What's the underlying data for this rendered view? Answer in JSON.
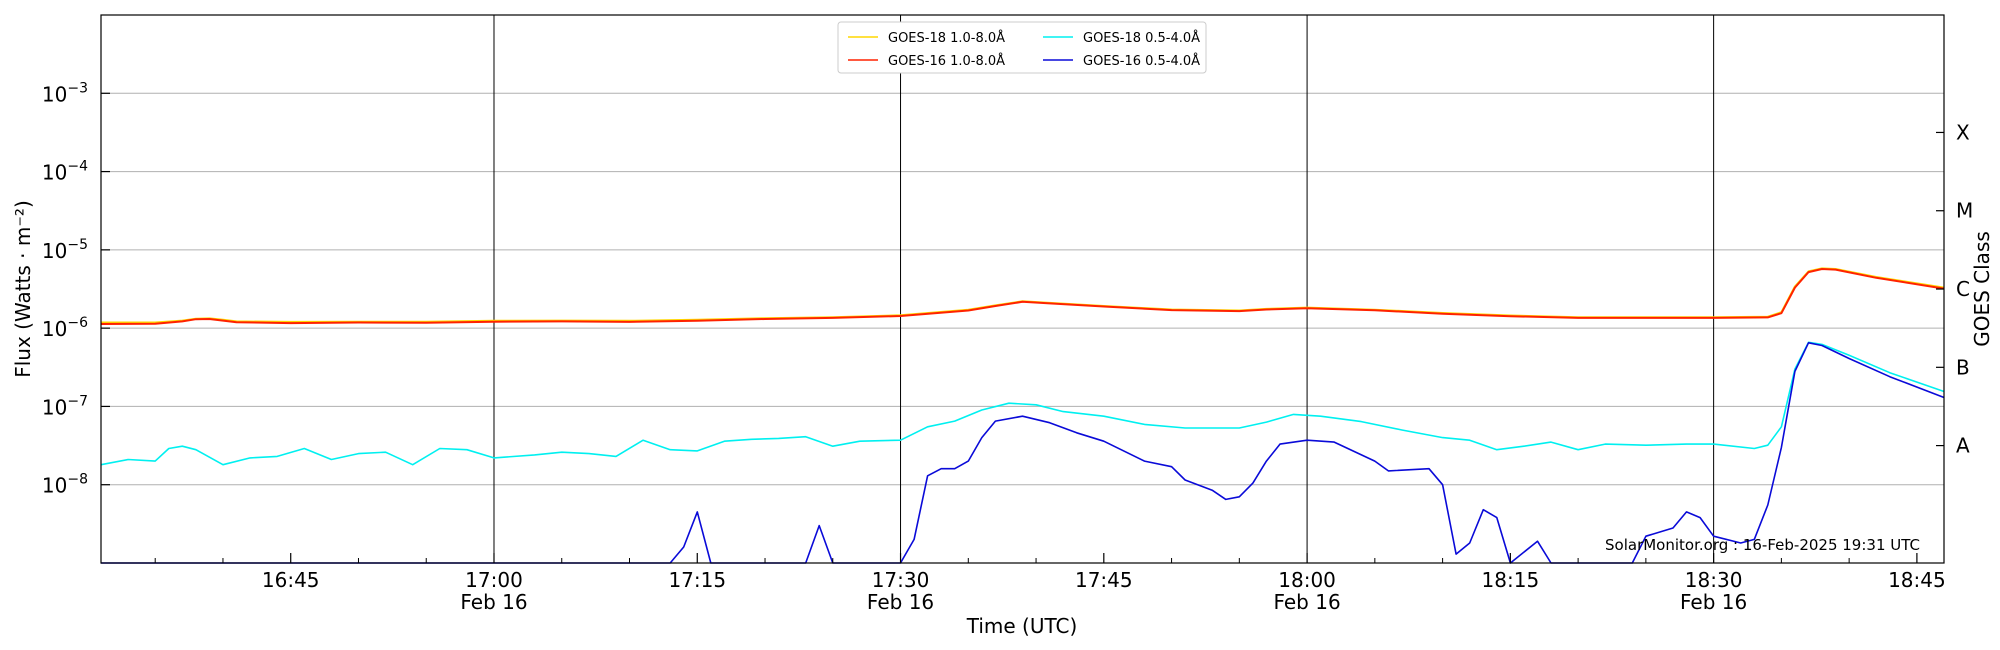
{
  "chart_data": {
    "type": "line",
    "xlabel": "Time (UTC)",
    "ylabel": "Flux (Watts · m⁻²)",
    "right_label": "GOES Class",
    "credit": "SolarMonitor.org : 16-Feb-2025 19:31 UTC",
    "x_range": [
      "16:31",
      "18:47"
    ],
    "y_range": [
      1e-09,
      0.01
    ],
    "y_scale": "log",
    "grid": "horizontal at decades",
    "y_ticks": [
      {
        "value": 1e-08,
        "base": "10",
        "exp": "−8"
      },
      {
        "value": 1e-07,
        "base": "10",
        "exp": "−7"
      },
      {
        "value": 1e-06,
        "base": "10",
        "exp": "−6"
      },
      {
        "value": 1e-05,
        "base": "10",
        "exp": "−5"
      },
      {
        "value": 0.0001,
        "base": "10",
        "exp": "−4"
      },
      {
        "value": 0.001,
        "base": "10",
        "exp": "−3"
      }
    ],
    "x_ticks": [
      {
        "time": "16:45",
        "label": "16:45",
        "sub": ""
      },
      {
        "time": "17:00",
        "label": "17:00",
        "sub": "Feb 16"
      },
      {
        "time": "17:15",
        "label": "17:15",
        "sub": ""
      },
      {
        "time": "17:30",
        "label": "17:30",
        "sub": "Feb 16"
      },
      {
        "time": "17:45",
        "label": "17:45",
        "sub": ""
      },
      {
        "time": "18:00",
        "label": "18:00",
        "sub": "Feb 16"
      },
      {
        "time": "18:15",
        "label": "18:15",
        "sub": ""
      },
      {
        "time": "18:30",
        "label": "18:30",
        "sub": "Feb 16"
      },
      {
        "time": "18:45",
        "label": "18:45",
        "sub": ""
      }
    ],
    "vlines": [
      "17:00",
      "17:30",
      "18:00",
      "18:30"
    ],
    "classes": [
      {
        "label": "A",
        "value": 3.16e-08
      },
      {
        "label": "B",
        "value": 3.16e-07
      },
      {
        "label": "C",
        "value": 3.16e-06
      },
      {
        "label": "M",
        "value": 3.16e-05
      },
      {
        "label": "X",
        "value": 0.000316
      }
    ],
    "legend_position": "top-center",
    "series": [
      {
        "name": "GOES-18 1.0-8.0Å",
        "color": "#ffd700",
        "points": [
          [
            "16:31",
            1.18e-06
          ],
          [
            "16:35",
            1.18e-06
          ],
          [
            "16:37",
            1.25e-06
          ],
          [
            "16:38",
            1.32e-06
          ],
          [
            "16:39",
            1.33e-06
          ],
          [
            "16:40",
            1.28e-06
          ],
          [
            "16:41",
            1.22e-06
          ],
          [
            "16:45",
            1.2e-06
          ],
          [
            "16:50",
            1.21e-06
          ],
          [
            "16:55",
            1.21e-06
          ],
          [
            "17:00",
            1.24e-06
          ],
          [
            "17:05",
            1.25e-06
          ],
          [
            "17:10",
            1.24e-06
          ],
          [
            "17:15",
            1.28e-06
          ],
          [
            "17:20",
            1.34e-06
          ],
          [
            "17:25",
            1.38e-06
          ],
          [
            "17:30",
            1.46e-06
          ],
          [
            "17:35",
            1.72e-06
          ],
          [
            "17:37",
            1.95e-06
          ],
          [
            "17:39",
            2.2e-06
          ],
          [
            "17:41",
            2.1e-06
          ],
          [
            "17:45",
            1.92e-06
          ],
          [
            "17:50",
            1.73e-06
          ],
          [
            "17:55",
            1.68e-06
          ],
          [
            "17:57",
            1.76e-06
          ],
          [
            "18:00",
            1.83e-06
          ],
          [
            "18:05",
            1.72e-06
          ],
          [
            "18:10",
            1.56e-06
          ],
          [
            "18:15",
            1.45e-06
          ],
          [
            "18:20",
            1.38e-06
          ],
          [
            "18:25",
            1.38e-06
          ],
          [
            "18:30",
            1.38e-06
          ],
          [
            "18:34",
            1.4e-06
          ],
          [
            "18:35",
            1.6e-06
          ],
          [
            "18:36",
            3.4e-06
          ],
          [
            "18:37",
            5.3e-06
          ],
          [
            "18:38",
            5.8e-06
          ],
          [
            "18:39",
            5.7e-06
          ],
          [
            "18:42",
            4.5e-06
          ],
          [
            "18:47",
            3.3e-06
          ]
        ]
      },
      {
        "name": "GOES-16 1.0-8.0Å",
        "color": "#ff2200",
        "points": [
          [
            "16:31",
            1.13e-06
          ],
          [
            "16:35",
            1.14e-06
          ],
          [
            "16:37",
            1.22e-06
          ],
          [
            "16:38",
            1.3e-06
          ],
          [
            "16:39",
            1.31e-06
          ],
          [
            "16:40",
            1.25e-06
          ],
          [
            "16:41",
            1.19e-06
          ],
          [
            "16:45",
            1.16e-06
          ],
          [
            "16:50",
            1.18e-06
          ],
          [
            "16:55",
            1.17e-06
          ],
          [
            "17:00",
            1.21e-06
          ],
          [
            "17:05",
            1.22e-06
          ],
          [
            "17:10",
            1.2e-06
          ],
          [
            "17:15",
            1.24e-06
          ],
          [
            "17:20",
            1.31e-06
          ],
          [
            "17:25",
            1.35e-06
          ],
          [
            "17:30",
            1.43e-06
          ],
          [
            "17:35",
            1.68e-06
          ],
          [
            "17:37",
            1.92e-06
          ],
          [
            "17:39",
            2.17e-06
          ],
          [
            "17:41",
            2.07e-06
          ],
          [
            "17:45",
            1.89e-06
          ],
          [
            "17:50",
            1.7e-06
          ],
          [
            "17:55",
            1.65e-06
          ],
          [
            "17:57",
            1.73e-06
          ],
          [
            "18:00",
            1.8e-06
          ],
          [
            "18:05",
            1.69e-06
          ],
          [
            "18:10",
            1.53e-06
          ],
          [
            "18:15",
            1.42e-06
          ],
          [
            "18:20",
            1.35e-06
          ],
          [
            "18:25",
            1.35e-06
          ],
          [
            "18:30",
            1.35e-06
          ],
          [
            "18:34",
            1.37e-06
          ],
          [
            "18:35",
            1.55e-06
          ],
          [
            "18:36",
            3.3e-06
          ],
          [
            "18:37",
            5.2e-06
          ],
          [
            "18:38",
            5.7e-06
          ],
          [
            "18:39",
            5.6e-06
          ],
          [
            "18:42",
            4.4e-06
          ],
          [
            "18:47",
            3.2e-06
          ]
        ]
      },
      {
        "name": "GOES-18 0.5-4.0Å",
        "color": "#00f0f0",
        "points": [
          [
            "16:31",
            1.8e-08
          ],
          [
            "16:33",
            2.1e-08
          ],
          [
            "16:35",
            2e-08
          ],
          [
            "16:36",
            2.9e-08
          ],
          [
            "16:37",
            3.1e-08
          ],
          [
            "16:38",
            2.8e-08
          ],
          [
            "16:40",
            1.8e-08
          ],
          [
            "16:42",
            2.2e-08
          ],
          [
            "16:44",
            2.3e-08
          ],
          [
            "16:46",
            2.9e-08
          ],
          [
            "16:48",
            2.1e-08
          ],
          [
            "16:50",
            2.5e-08
          ],
          [
            "16:52",
            2.6e-08
          ],
          [
            "16:54",
            1.8e-08
          ],
          [
            "16:56",
            2.9e-08
          ],
          [
            "16:58",
            2.8e-08
          ],
          [
            "17:00",
            2.2e-08
          ],
          [
            "17:03",
            2.4e-08
          ],
          [
            "17:05",
            2.6e-08
          ],
          [
            "17:07",
            2.5e-08
          ],
          [
            "17:09",
            2.3e-08
          ],
          [
            "17:11",
            3.7e-08
          ],
          [
            "17:13",
            2.8e-08
          ],
          [
            "17:15",
            2.7e-08
          ],
          [
            "17:17",
            3.6e-08
          ],
          [
            "17:19",
            3.8e-08
          ],
          [
            "17:21",
            3.9e-08
          ],
          [
            "17:23",
            4.1e-08
          ],
          [
            "17:25",
            3.1e-08
          ],
          [
            "17:27",
            3.6e-08
          ],
          [
            "17:30",
            3.7e-08
          ],
          [
            "17:32",
            5.5e-08
          ],
          [
            "17:34",
            6.5e-08
          ],
          [
            "17:36",
            9e-08
          ],
          [
            "17:38",
            1.1e-07
          ],
          [
            "17:40",
            1.05e-07
          ],
          [
            "17:42",
            8.6e-08
          ],
          [
            "17:45",
            7.5e-08
          ],
          [
            "17:48",
            5.9e-08
          ],
          [
            "17:51",
            5.3e-08
          ],
          [
            "17:55",
            5.3e-08
          ],
          [
            "17:57",
            6.3e-08
          ],
          [
            "17:59",
            7.9e-08
          ],
          [
            "18:01",
            7.5e-08
          ],
          [
            "18:04",
            6.4e-08
          ],
          [
            "18:07",
            5e-08
          ],
          [
            "18:10",
            4e-08
          ],
          [
            "18:12",
            3.7e-08
          ],
          [
            "18:14",
            2.8e-08
          ],
          [
            "18:16",
            3.1e-08
          ],
          [
            "18:18",
            3.5e-08
          ],
          [
            "18:20",
            2.8e-08
          ],
          [
            "18:22",
            3.3e-08
          ],
          [
            "18:25",
            3.2e-08
          ],
          [
            "18:28",
            3.3e-08
          ],
          [
            "18:30",
            3.3e-08
          ],
          [
            "18:33",
            2.9e-08
          ],
          [
            "18:34",
            3.2e-08
          ],
          [
            "18:35",
            5.5e-08
          ],
          [
            "18:36",
            3e-07
          ],
          [
            "18:37",
            6.6e-07
          ],
          [
            "18:38",
            6.2e-07
          ],
          [
            "18:40",
            4.5e-07
          ],
          [
            "18:43",
            2.7e-07
          ],
          [
            "18:47",
            1.55e-07
          ]
        ]
      },
      {
        "name": "GOES-16 0.5-4.0Å",
        "color": "#0a0ad8",
        "points": [
          [
            "16:31",
            1e-09
          ],
          [
            "17:13",
            1e-09
          ],
          [
            "17:14",
            1.6e-09
          ],
          [
            "17:15",
            4.5e-09
          ],
          [
            "17:16",
            1e-09
          ],
          [
            "17:23",
            1e-09
          ],
          [
            "17:24",
            3e-09
          ],
          [
            "17:25",
            1e-09
          ],
          [
            "17:30",
            1e-09
          ],
          [
            "17:31",
            2e-09
          ],
          [
            "17:32",
            1.3e-08
          ],
          [
            "17:33",
            1.6e-08
          ],
          [
            "17:34",
            1.6e-08
          ],
          [
            "17:35",
            2e-08
          ],
          [
            "17:36",
            4e-08
          ],
          [
            "17:37",
            6.5e-08
          ],
          [
            "17:39",
            7.5e-08
          ],
          [
            "17:41",
            6.2e-08
          ],
          [
            "17:43",
            4.6e-08
          ],
          [
            "17:45",
            3.6e-08
          ],
          [
            "17:48",
            2e-08
          ],
          [
            "17:50",
            1.7e-08
          ],
          [
            "17:51",
            1.15e-08
          ],
          [
            "17:53",
            8.5e-09
          ],
          [
            "17:54",
            6.5e-09
          ],
          [
            "17:55",
            7e-09
          ],
          [
            "17:56",
            1.05e-08
          ],
          [
            "17:57",
            2e-08
          ],
          [
            "17:58",
            3.3e-08
          ],
          [
            "18:00",
            3.7e-08
          ],
          [
            "18:02",
            3.5e-08
          ],
          [
            "18:05",
            2e-08
          ],
          [
            "18:06",
            1.5e-08
          ],
          [
            "18:09",
            1.6e-08
          ],
          [
            "18:10",
            1e-08
          ],
          [
            "18:11",
            1.3e-09
          ],
          [
            "18:12",
            1.8e-09
          ],
          [
            "18:13",
            4.8e-09
          ],
          [
            "18:14",
            3.8e-09
          ],
          [
            "18:15",
            1e-09
          ],
          [
            "18:17",
            1.9e-09
          ],
          [
            "18:18",
            1e-09
          ],
          [
            "18:24",
            1e-09
          ],
          [
            "18:25",
            2.2e-09
          ],
          [
            "18:27",
            2.8e-09
          ],
          [
            "18:28",
            4.5e-09
          ],
          [
            "18:29",
            3.8e-09
          ],
          [
            "18:30",
            2.2e-09
          ],
          [
            "18:32",
            1.8e-09
          ],
          [
            "18:33",
            2e-09
          ],
          [
            "18:34",
            5.5e-09
          ],
          [
            "18:35",
            3e-08
          ],
          [
            "18:36",
            2.8e-07
          ],
          [
            "18:37",
            6.5e-07
          ],
          [
            "18:38",
            6e-07
          ],
          [
            "18:40",
            4.1e-07
          ],
          [
            "18:43",
            2.4e-07
          ],
          [
            "18:47",
            1.3e-07
          ]
        ]
      }
    ]
  }
}
